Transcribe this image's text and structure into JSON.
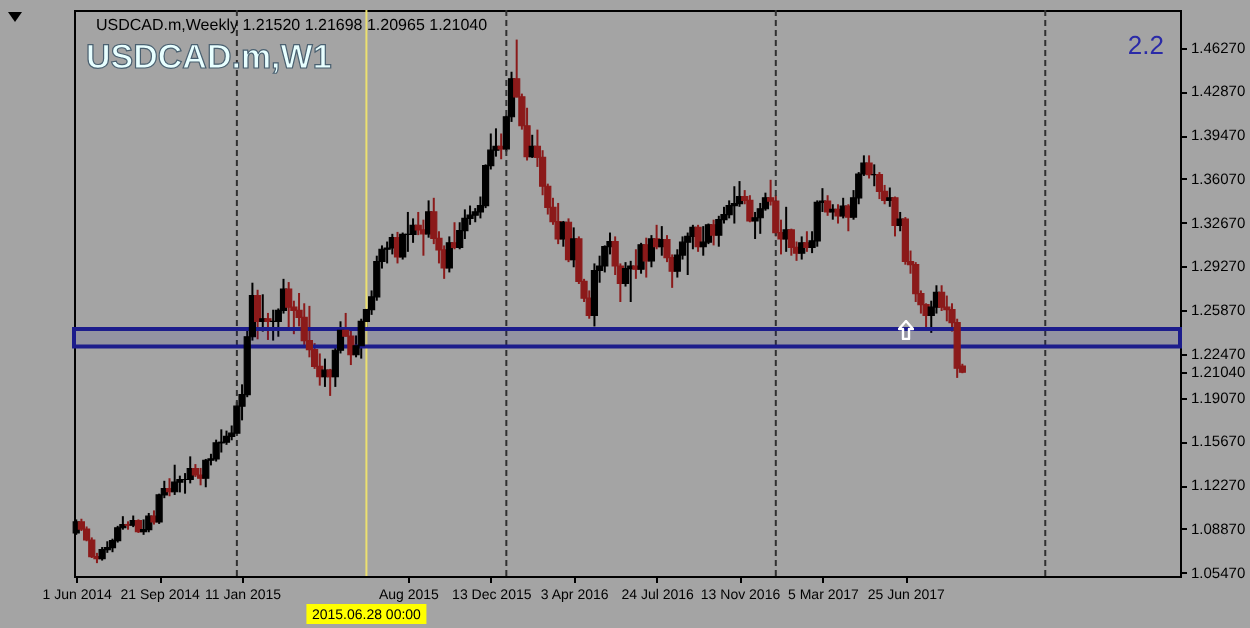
{
  "chart_data": {
    "type": "candlestick",
    "title": "USDCAD.m,Weekly 1.21520 1.21698 1.20965 1.21040",
    "annotations": [
      "USDCAD.m,W1",
      "2.2"
    ],
    "colors": [
      "#000000",
      "#8b1a1a",
      "#8b1a1a",
      "#8b1a1a",
      "#8b1a1a",
      "#000000",
      "#000000",
      "#000000",
      "#000000",
      "#000000",
      "#8b1a1a",
      "#000000",
      "#8b1a1a",
      "#000000",
      "#000000",
      "#8b1a1a",
      "#000000",
      "#000000",
      "#8b1a1a",
      "#000000",
      "#000000",
      "#000000",
      "#000000",
      "#8b1a1a",
      "#8b1a1a",
      "#000000",
      "#000000",
      "#000000",
      "#000000",
      "#000000",
      "#000000",
      "#000000",
      "#000000",
      "#000000",
      "#000000",
      "#8b1a1a",
      "#000000",
      "#8b1a1a",
      "#000000",
      "#000000",
      "#000000",
      "#8b1a1a",
      "#8b1a1a",
      "#8b1a1a",
      "#8b1a1a",
      "#8b1a1a",
      "#8b1a1a",
      "#8b1a1a",
      "#000000",
      "#8b1a1a",
      "#000000",
      "#000000",
      "#8b1a1a",
      "#8b1a1a",
      "#000000",
      "#000000",
      "#000000",
      "#000000",
      "#000000",
      "#000000",
      "#000000",
      "#000000",
      "#8b1a1a",
      "#000000",
      "#000000",
      "#000000",
      "#8b1a1a",
      "#8b1a1a",
      "#000000",
      "#8b1a1a",
      "#8b1a1a",
      "#8b1a1a",
      "#000000",
      "#8b1a1a",
      "#000000",
      "#000000",
      "#000000",
      "#000000",
      "#000000",
      "#000000",
      "#000000",
      "#000000",
      "#8b1a1a",
      "#000000",
      "#000000",
      "#8b1a1a",
      "#8b1a1a",
      "#8b1a1a",
      "#000000",
      "#8b1a1a",
      "#8b1a1a",
      "#8b1a1a",
      "#8b1a1a",
      "#8b1a1a",
      "#000000",
      "#8b1a1a",
      "#000000",
      "#8b1a1a",
      "#8b1a1a",
      "#8b1a1a",
      "#000000",
      "#000000",
      "#000000",
      "#000000",
      "#8b1a1a",
      "#8b1a1a",
      "#000000",
      "#000000",
      "#8b1a1a",
      "#000000",
      "#8b1a1a",
      "#000000",
      "#8b1a1a",
      "#000000",
      "#8b1a1a",
      "#8b1a1a",
      "#000000",
      "#000000",
      "#000000",
      "#000000",
      "#8b1a1a",
      "#000000",
      "#000000",
      "#8b1a1a",
      "#000000",
      "#000000",
      "#000000",
      "#000000",
      "#000000",
      "#8b1a1a",
      "#8b1a1a",
      "#000000",
      "#000000",
      "#000000",
      "#8b1a1a",
      "#8b1a1a",
      "#8b1a1a",
      "#000000",
      "#8b1a1a",
      "#8b1a1a",
      "#000000",
      "#8b1a1a",
      "#000000",
      "#000000",
      "#000000",
      "#8b1a1a",
      "#000000",
      "#8b1a1a",
      "#000000",
      "#8b1a1a",
      "#000000",
      "#000000",
      "#000000",
      "#8b1a1a",
      "#000000",
      "#8b1a1a",
      "#8b1a1a",
      "#000000",
      "#8b1a1a",
      "#000000",
      "#8b1a1a",
      "#8b1a1a",
      "#8b1a1a",
      "#8b1a1a",
      "#8b1a1a",
      "#000000",
      "#000000",
      "#8b1a1a",
      "#8b1a1a",
      "#8b1a1a",
      "#8b1a1a",
      "#8b1a1a"
    ],
    "x": [
      "2014-06-01",
      "2014-06-08",
      "2014-06-15",
      "2014-06-22",
      "2014-06-29",
      "2014-07-06",
      "2014-07-13",
      "2014-07-20",
      "2014-07-27",
      "2014-08-03",
      "2014-08-10",
      "2014-08-17",
      "2014-08-24",
      "2014-08-31",
      "2014-09-07",
      "2014-09-14",
      "2014-09-21",
      "2014-09-28",
      "2014-10-05",
      "2014-10-12",
      "2014-10-19",
      "2014-10-26",
      "2014-11-02",
      "2014-11-09",
      "2014-11-16",
      "2014-11-23",
      "2014-11-30",
      "2014-12-07",
      "2014-12-14",
      "2014-12-21",
      "2014-12-28",
      "2015-01-04",
      "2015-01-11",
      "2015-01-18",
      "2015-01-25",
      "2015-02-01",
      "2015-02-08",
      "2015-02-15",
      "2015-02-22",
      "2015-03-01",
      "2015-03-08",
      "2015-03-15",
      "2015-03-22",
      "2015-03-29",
      "2015-04-05",
      "2015-04-12",
      "2015-04-19",
      "2015-04-26",
      "2015-05-03",
      "2015-05-10",
      "2015-05-17",
      "2015-05-24",
      "2015-05-31",
      "2015-06-07",
      "2015-06-14",
      "2015-06-21",
      "2015-06-28",
      "2015-07-05",
      "2015-07-12",
      "2015-07-19",
      "2015-07-26",
      "2015-08-02",
      "2015-08-09",
      "2015-08-16",
      "2015-08-23",
      "2015-08-30",
      "2015-09-06",
      "2015-09-13",
      "2015-09-20",
      "2015-09-27",
      "2015-10-04",
      "2015-10-11",
      "2015-10-18",
      "2015-10-25",
      "2015-11-01",
      "2015-11-08",
      "2015-11-15",
      "2015-11-22",
      "2015-11-29",
      "2015-12-06",
      "2015-12-13",
      "2015-12-20",
      "2015-12-27",
      "2016-01-03",
      "2016-01-10",
      "2016-01-17",
      "2016-01-24",
      "2016-01-31",
      "2016-02-07",
      "2016-02-14",
      "2016-02-21",
      "2016-02-28",
      "2016-03-06",
      "2016-03-13",
      "2016-03-20",
      "2016-03-27",
      "2016-04-03",
      "2016-04-10",
      "2016-04-17",
      "2016-04-24",
      "2016-05-01",
      "2016-05-08",
      "2016-05-15",
      "2016-05-22",
      "2016-05-29",
      "2016-06-05",
      "2016-06-12",
      "2016-06-19",
      "2016-06-26",
      "2016-07-03",
      "2016-07-10",
      "2016-07-17",
      "2016-07-24",
      "2016-07-31",
      "2016-08-07",
      "2016-08-14",
      "2016-08-21",
      "2016-08-28",
      "2016-09-04",
      "2016-09-11",
      "2016-09-18",
      "2016-09-25",
      "2016-10-02",
      "2016-10-09",
      "2016-10-16",
      "2016-10-23",
      "2016-10-30",
      "2016-11-06",
      "2016-11-13",
      "2016-11-20",
      "2016-11-27",
      "2016-12-04",
      "2016-12-11",
      "2016-12-18",
      "2016-12-25",
      "2017-01-01",
      "2017-01-08",
      "2017-01-15",
      "2017-01-22",
      "2017-01-29",
      "2017-02-05",
      "2017-02-12",
      "2017-02-19",
      "2017-02-26",
      "2017-03-05",
      "2017-03-12",
      "2017-03-19",
      "2017-03-26",
      "2017-04-02",
      "2017-04-09",
      "2017-04-16",
      "2017-04-23",
      "2017-04-30",
      "2017-05-07",
      "2017-05-14",
      "2017-05-21",
      "2017-05-28",
      "2017-06-04",
      "2017-06-11",
      "2017-06-18",
      "2017-06-25",
      "2017-07-02",
      "2017-07-09",
      "2017-07-16",
      "2017-07-23",
      "2017-07-30",
      "2017-08-06",
      "2017-08-13",
      "2017-08-20",
      "2017-08-27",
      "2017-09-03",
      "2017-09-10"
    ],
    "ohlc": [
      [
        1.0855,
        1.096,
        1.084,
        1.094
      ],
      [
        1.094,
        1.0965,
        1.087,
        1.0885
      ],
      [
        1.0885,
        1.0905,
        1.079,
        1.08
      ],
      [
        1.08,
        1.082,
        1.066,
        1.067
      ],
      [
        1.067,
        1.07,
        1.062,
        1.0655
      ],
      [
        1.0655,
        1.0745,
        1.064,
        1.0725
      ],
      [
        1.0725,
        1.079,
        1.07,
        1.074
      ],
      [
        1.074,
        1.081,
        1.0705,
        1.0795
      ],
      [
        1.0795,
        1.091,
        1.078,
        1.0895
      ],
      [
        1.0895,
        1.0985,
        1.088,
        1.092
      ],
      [
        1.092,
        1.0945,
        1.088,
        1.0915
      ],
      [
        1.0915,
        1.099,
        1.09,
        1.095
      ],
      [
        1.095,
        1.096,
        1.0855,
        1.0865
      ],
      [
        1.0865,
        1.096,
        1.084,
        1.088
      ],
      [
        1.088,
        1.101,
        1.086,
        1.0985
      ],
      [
        1.0985,
        1.103,
        1.092,
        1.094
      ],
      [
        1.094,
        1.116,
        1.0925,
        1.115
      ],
      [
        1.115,
        1.126,
        1.1125,
        1.12
      ],
      [
        1.12,
        1.128,
        1.114,
        1.1175
      ],
      [
        1.1175,
        1.1385,
        1.115,
        1.125
      ],
      [
        1.125,
        1.13,
        1.117,
        1.127
      ],
      [
        1.127,
        1.132,
        1.116,
        1.127
      ],
      [
        1.127,
        1.145,
        1.124,
        1.1355
      ],
      [
        1.1355,
        1.139,
        1.129,
        1.1305
      ],
      [
        1.1305,
        1.136,
        1.1225,
        1.128
      ],
      [
        1.128,
        1.143,
        1.121,
        1.142
      ],
      [
        1.142,
        1.147,
        1.138,
        1.143
      ],
      [
        1.143,
        1.158,
        1.141,
        1.1555
      ],
      [
        1.1555,
        1.166,
        1.148,
        1.156
      ],
      [
        1.156,
        1.165,
        1.154,
        1.1605
      ],
      [
        1.1605,
        1.169,
        1.1575,
        1.163
      ],
      [
        1.163,
        1.1875,
        1.162,
        1.184
      ],
      [
        1.184,
        1.201,
        1.173,
        1.193
      ],
      [
        1.193,
        1.245,
        1.191,
        1.238
      ],
      [
        1.238,
        1.28,
        1.235,
        1.27
      ],
      [
        1.27,
        1.2745,
        1.236,
        1.25
      ],
      [
        1.25,
        1.271,
        1.242,
        1.252
      ],
      [
        1.252,
        1.2565,
        1.2355,
        1.25
      ],
      [
        1.25,
        1.259,
        1.235,
        1.25
      ],
      [
        1.25,
        1.26,
        1.238,
        1.2585
      ],
      [
        1.2585,
        1.283,
        1.256,
        1.275
      ],
      [
        1.275,
        1.2805,
        1.2445,
        1.261
      ],
      [
        1.261,
        1.266,
        1.24,
        1.2585
      ],
      [
        1.2585,
        1.272,
        1.246,
        1.253
      ],
      [
        1.253,
        1.264,
        1.231,
        1.235
      ],
      [
        1.235,
        1.262,
        1.222,
        1.228
      ],
      [
        1.228,
        1.233,
        1.213,
        1.215
      ],
      [
        1.215,
        1.225,
        1.2,
        1.207
      ],
      [
        1.207,
        1.221,
        1.199,
        1.212
      ],
      [
        1.212,
        1.213,
        1.192,
        1.207
      ],
      [
        1.207,
        1.231,
        1.199,
        1.2275
      ],
      [
        1.2275,
        1.25,
        1.225,
        1.243
      ],
      [
        1.243,
        1.2565,
        1.238,
        1.2385
      ],
      [
        1.2385,
        1.243,
        1.216,
        1.224
      ],
      [
        1.224,
        1.239,
        1.222,
        1.231
      ],
      [
        1.231,
        1.252,
        1.221,
        1.25
      ],
      [
        1.25,
        1.26,
        1.243,
        1.259
      ],
      [
        1.259,
        1.274,
        1.255,
        1.269
      ],
      [
        1.269,
        1.301,
        1.266,
        1.2965
      ],
      [
        1.2965,
        1.309,
        1.291,
        1.306
      ],
      [
        1.306,
        1.312,
        1.295,
        1.307
      ],
      [
        1.307,
        1.318,
        1.302,
        1.315
      ],
      [
        1.315,
        1.3195,
        1.295,
        1.3
      ],
      [
        1.3,
        1.319,
        1.298,
        1.3175
      ],
      [
        1.3175,
        1.335,
        1.304,
        1.3175
      ],
      [
        1.3175,
        1.33,
        1.311,
        1.3245
      ],
      [
        1.3245,
        1.335,
        1.317,
        1.321
      ],
      [
        1.321,
        1.329,
        1.301,
        1.318
      ],
      [
        1.318,
        1.344,
        1.315,
        1.335
      ],
      [
        1.335,
        1.346,
        1.31,
        1.3145
      ],
      [
        1.3145,
        1.32,
        1.295,
        1.3055
      ],
      [
        1.3055,
        1.309,
        1.283,
        1.2915
      ],
      [
        1.2915,
        1.316,
        1.288,
        1.311
      ],
      [
        1.311,
        1.327,
        1.306,
        1.3075
      ],
      [
        1.3075,
        1.327,
        1.306,
        1.3205
      ],
      [
        1.3205,
        1.337,
        1.314,
        1.33
      ],
      [
        1.33,
        1.34,
        1.325,
        1.3325
      ],
      [
        1.3325,
        1.338,
        1.327,
        1.335
      ],
      [
        1.335,
        1.347,
        1.33,
        1.34
      ],
      [
        1.34,
        1.372,
        1.338,
        1.371
      ],
      [
        1.371,
        1.396,
        1.368,
        1.383
      ],
      [
        1.383,
        1.4,
        1.378,
        1.386
      ],
      [
        1.386,
        1.396,
        1.376,
        1.384
      ],
      [
        1.384,
        1.41,
        1.382,
        1.409
      ],
      [
        1.409,
        1.444,
        1.405,
        1.4385
      ],
      [
        1.4385,
        1.469,
        1.424,
        1.4245
      ],
      [
        1.4245,
        1.427,
        1.399,
        1.402
      ],
      [
        1.402,
        1.416,
        1.375,
        1.378
      ],
      [
        1.378,
        1.395,
        1.377,
        1.386
      ],
      [
        1.386,
        1.399,
        1.37,
        1.3775
      ],
      [
        1.3775,
        1.383,
        1.348,
        1.355
      ],
      [
        1.355,
        1.357,
        1.333,
        1.3385
      ],
      [
        1.3385,
        1.346,
        1.325,
        1.3275
      ],
      [
        1.3275,
        1.342,
        1.31,
        1.314
      ],
      [
        1.314,
        1.328,
        1.308,
        1.327
      ],
      [
        1.327,
        1.33,
        1.296,
        1.298
      ],
      [
        1.298,
        1.323,
        1.292,
        1.314
      ],
      [
        1.314,
        1.316,
        1.279,
        1.281
      ],
      [
        1.281,
        1.283,
        1.265,
        1.268
      ],
      [
        1.268,
        1.274,
        1.252,
        1.2545
      ],
      [
        1.2545,
        1.295,
        1.246,
        1.2895
      ],
      [
        1.2895,
        1.301,
        1.28,
        1.293
      ],
      [
        1.293,
        1.309,
        1.288,
        1.308
      ],
      [
        1.308,
        1.319,
        1.302,
        1.312
      ],
      [
        1.312,
        1.316,
        1.286,
        1.293
      ],
      [
        1.293,
        1.295,
        1.265,
        1.2795
      ],
      [
        1.2795,
        1.296,
        1.277,
        1.291
      ],
      [
        1.291,
        1.297,
        1.265,
        1.293
      ],
      [
        1.293,
        1.306,
        1.283,
        1.2905
      ],
      [
        1.2905,
        1.311,
        1.287,
        1.3095
      ],
      [
        1.3095,
        1.315,
        1.284,
        1.297
      ],
      [
        1.297,
        1.317,
        1.292,
        1.314
      ],
      [
        1.314,
        1.325,
        1.306,
        1.308
      ],
      [
        1.308,
        1.324,
        1.301,
        1.3135
      ],
      [
        1.3135,
        1.317,
        1.296,
        1.2995
      ],
      [
        1.2995,
        1.302,
        1.276,
        1.289
      ],
      [
        1.289,
        1.306,
        1.284,
        1.3015
      ],
      [
        1.3015,
        1.316,
        1.298,
        1.3115
      ],
      [
        1.3115,
        1.319,
        1.286,
        1.316
      ],
      [
        1.316,
        1.325,
        1.306,
        1.323
      ],
      [
        1.323,
        1.325,
        1.304,
        1.308
      ],
      [
        1.308,
        1.324,
        1.301,
        1.3115
      ],
      [
        1.3115,
        1.326,
        1.31,
        1.325
      ],
      [
        1.325,
        1.329,
        1.309,
        1.317
      ],
      [
        1.317,
        1.332,
        1.308,
        1.329
      ],
      [
        1.329,
        1.339,
        1.326,
        1.333
      ],
      [
        1.333,
        1.344,
        1.33,
        1.34
      ],
      [
        1.34,
        1.355,
        1.326,
        1.3415
      ],
      [
        1.3415,
        1.359,
        1.339,
        1.347
      ],
      [
        1.347,
        1.352,
        1.341,
        1.344
      ],
      [
        1.344,
        1.348,
        1.327,
        1.328
      ],
      [
        1.328,
        1.335,
        1.314,
        1.3305
      ],
      [
        1.3305,
        1.342,
        1.318,
        1.3375
      ],
      [
        1.3375,
        1.35,
        1.336,
        1.346
      ],
      [
        1.346,
        1.36,
        1.34,
        1.3435
      ],
      [
        1.3435,
        1.348,
        1.316,
        1.319
      ],
      [
        1.319,
        1.329,
        1.302,
        1.314
      ],
      [
        1.314,
        1.339,
        1.304,
        1.321
      ],
      [
        1.321,
        1.322,
        1.301,
        1.3075
      ],
      [
        1.3075,
        1.312,
        1.297,
        1.303
      ],
      [
        1.303,
        1.316,
        1.298,
        1.311
      ],
      [
        1.311,
        1.32,
        1.304,
        1.3075
      ],
      [
        1.3075,
        1.32,
        1.303,
        1.3125
      ],
      [
        1.3125,
        1.344,
        1.308,
        1.3425
      ],
      [
        1.3425,
        1.3535,
        1.335,
        1.3435
      ],
      [
        1.3435,
        1.348,
        1.332,
        1.335
      ],
      [
        1.335,
        1.341,
        1.329,
        1.337
      ],
      [
        1.337,
        1.341,
        1.326,
        1.332
      ],
      [
        1.332,
        1.346,
        1.33,
        1.3395
      ],
      [
        1.3395,
        1.341,
        1.32,
        1.331
      ],
      [
        1.331,
        1.352,
        1.329,
        1.346
      ],
      [
        1.346,
        1.366,
        1.341,
        1.3645
      ],
      [
        1.3645,
        1.379,
        1.363,
        1.373
      ],
      [
        1.373,
        1.379,
        1.361,
        1.364
      ],
      [
        1.364,
        1.372,
        1.355,
        1.364
      ],
      [
        1.364,
        1.366,
        1.345,
        1.351
      ],
      [
        1.351,
        1.356,
        1.341,
        1.344
      ],
      [
        1.344,
        1.354,
        1.339,
        1.346
      ],
      [
        1.346,
        1.347,
        1.316,
        1.3245
      ],
      [
        1.3245,
        1.335,
        1.32,
        1.3295
      ],
      [
        1.3295,
        1.331,
        1.294,
        1.2965
      ],
      [
        1.2965,
        1.305,
        1.287,
        1.294
      ],
      [
        1.294,
        1.296,
        1.265,
        1.2715
      ],
      [
        1.2715,
        1.274,
        1.256,
        1.263
      ],
      [
        1.263,
        1.264,
        1.244,
        1.2545
      ],
      [
        1.2545,
        1.266,
        1.241,
        1.261
      ],
      [
        1.261,
        1.278,
        1.256,
        1.2725
      ],
      [
        1.2725,
        1.278,
        1.258,
        1.261
      ],
      [
        1.261,
        1.27,
        1.25,
        1.259
      ],
      [
        1.259,
        1.264,
        1.242,
        1.249
      ],
      [
        1.249,
        1.252,
        1.206,
        1.2135
      ],
      [
        1.2152,
        1.21698,
        1.20965,
        1.2104
      ]
    ],
    "xlim": [
      "2014-05-29",
      "2018-07-01"
    ],
    "xticks": [
      {
        "value": "2014-06-01",
        "label": "1 Jun 2014"
      },
      {
        "value": "2014-09-21",
        "label": "21 Sep 2014"
      },
      {
        "value": "2015-01-11",
        "label": "11 Jan 2015"
      },
      {
        "value": "2015-08-23",
        "label": "Aug 2015"
      },
      {
        "value": "2015-12-13",
        "label": "13 Dec 2015"
      },
      {
        "value": "2016-04-03",
        "label": "3 Apr 2016"
      },
      {
        "value": "2016-07-24",
        "label": "24 Jul 2016"
      },
      {
        "value": "2016-11-13",
        "label": "13 Nov 2016"
      },
      {
        "value": "2017-03-05",
        "label": "5 Mar 2017"
      },
      {
        "value": "2017-06-25",
        "label": "25 Jun 2017"
      }
    ],
    "ylim": [
      1.052,
      1.492
    ],
    "yticks": [
      {
        "value": 1.4627,
        "label": "1.46270"
      },
      {
        "value": 1.4287,
        "label": "1.42870"
      },
      {
        "value": 1.3947,
        "label": "1.39470"
      },
      {
        "value": 1.3607,
        "label": "1.36070"
      },
      {
        "value": 1.3267,
        "label": "1.32670"
      },
      {
        "value": 1.2927,
        "label": "1.29270"
      },
      {
        "value": 1.2587,
        "label": "1.25870"
      },
      {
        "value": 1.2247,
        "label": "1.22470"
      },
      {
        "value": 1.2104,
        "label": "1.21040"
      },
      {
        "value": 1.1907,
        "label": "1.19070"
      },
      {
        "value": 1.1567,
        "label": "1.15670"
      },
      {
        "value": 1.1227,
        "label": "1.12270"
      },
      {
        "value": 1.0887,
        "label": "1.08870"
      },
      {
        "value": 1.0547,
        "label": "1.05470"
      }
    ],
    "ref_lines": [
      {
        "axis": "x",
        "value": "2015-01-04",
        "color": "#303030",
        "line_style": "dashed"
      },
      {
        "axis": "x",
        "value": "2016-01-03",
        "color": "#303030",
        "line_style": "dashed"
      },
      {
        "axis": "x",
        "value": "2017-01-01",
        "color": "#303030",
        "line_style": "dashed"
      },
      {
        "axis": "x",
        "value": "2017-12-31",
        "color": "#303030",
        "line_style": "dashed"
      },
      {
        "axis": "x",
        "value": "2015-06-28",
        "label": "2015.06.28 00:00",
        "color": "#ece070",
        "line_style": "solid"
      }
    ],
    "bands": [
      {
        "axis": "y",
        "from": 1.2305,
        "to": 1.244,
        "color": "#1c1c8c"
      }
    ]
  }
}
